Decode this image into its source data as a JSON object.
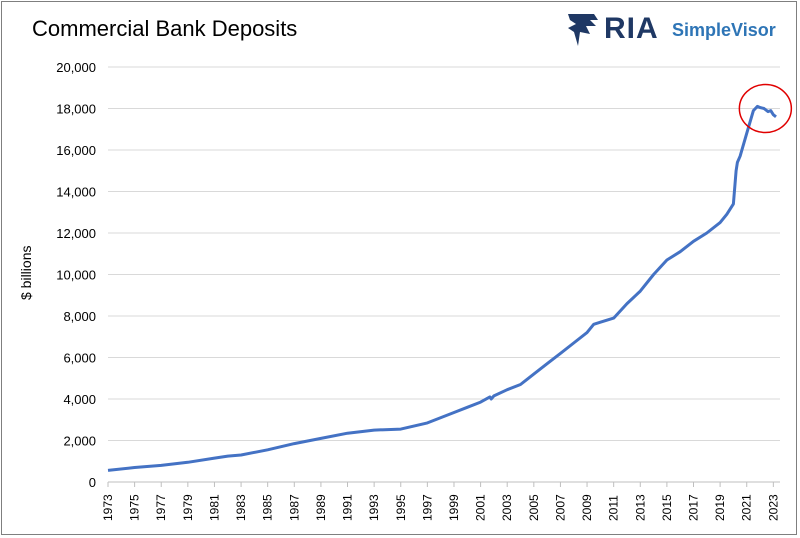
{
  "header": {
    "title": "Commercial Bank Deposits"
  },
  "brand": {
    "name": "RIA",
    "product": "SimpleVisor",
    "primary_color": "#1f3864",
    "accent_color": "#2e75b6"
  },
  "chart_data": {
    "type": "line",
    "title": "Commercial Bank Deposits",
    "xlabel": "",
    "ylabel": "$ billions",
    "xlim": [
      1973,
      2023.5
    ],
    "ylim": [
      0,
      20000
    ],
    "y_ticks": [
      "0",
      "2,000",
      "4,000",
      "6,000",
      "8,000",
      "10,000",
      "12,000",
      "14,000",
      "16,000",
      "18,000",
      "20,000"
    ],
    "x_ticks": [
      "1973",
      "1975",
      "1977",
      "1979",
      "1981",
      "1983",
      "1985",
      "1987",
      "1989",
      "1991",
      "1993",
      "1995",
      "1997",
      "1999",
      "2001",
      "2003",
      "2005",
      "2007",
      "2009",
      "2011",
      "2013",
      "2015",
      "2017",
      "2019",
      "2021",
      "2023"
    ],
    "grid": "horizontal",
    "series_color": "#4472c4",
    "highlight_color": "#e00000",
    "x": [
      1973,
      1975,
      1977,
      1979,
      1981,
      1982,
      1983,
      1985,
      1987,
      1989,
      1991,
      1993,
      1995,
      1997,
      1999,
      2000,
      2001,
      2001.7,
      2001.8,
      2002,
      2003,
      2004,
      2005,
      2006,
      2007,
      2008,
      2009,
      2009.5,
      2010,
      2011,
      2012,
      2013,
      2014,
      2015,
      2016,
      2017,
      2018,
      2019,
      2019.5,
      2020.0,
      2020.2,
      2020.3,
      2020.5,
      2021,
      2021.5,
      2021.8,
      2022,
      2022.3,
      2022.6,
      2022.8,
      2023.0,
      2023.2
    ],
    "values": [
      560,
      700,
      800,
      950,
      1150,
      1250,
      1300,
      1550,
      1850,
      2100,
      2350,
      2500,
      2550,
      2850,
      3350,
      3600,
      3850,
      4100,
      4000,
      4150,
      4450,
      4700,
      5200,
      5700,
      6200,
      6700,
      7200,
      7600,
      7700,
      7900,
      8600,
      9200,
      10000,
      10700,
      11100,
      11600,
      12000,
      12500,
      12900,
      13400,
      15000,
      15400,
      15700,
      16800,
      17900,
      18100,
      18050,
      18000,
      17850,
      17900,
      17700,
      17600
    ],
    "highlight": {
      "x": 2022.4,
      "y": 18000
    }
  }
}
